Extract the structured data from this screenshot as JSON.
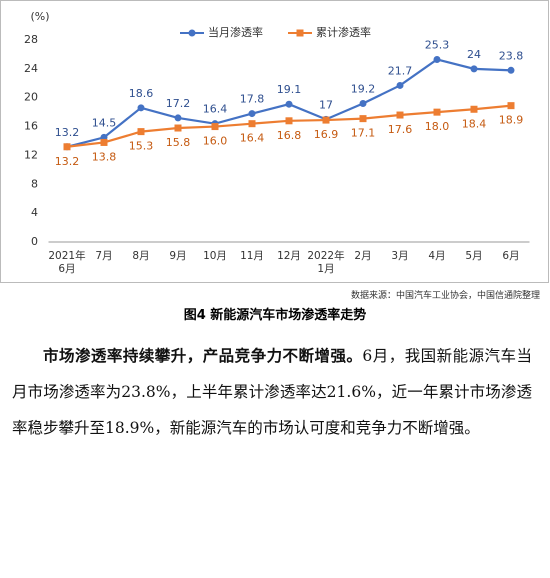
{
  "chart_data": {
    "type": "line",
    "unit_label": "(%)",
    "categories": [
      "2021年\n6月",
      "7月",
      "8月",
      "9月",
      "10月",
      "11月",
      "12月",
      "2022年\n1月",
      "2月",
      "3月",
      "4月",
      "5月",
      "6月"
    ],
    "series": [
      {
        "name": "当月渗透率",
        "color": "#4472c4",
        "values": [
          13.2,
          14.5,
          18.6,
          17.2,
          16.4,
          17.8,
          19.1,
          17,
          19.2,
          21.7,
          25.3,
          24,
          23.8
        ]
      },
      {
        "name": "累计渗透率",
        "color": "#ed7d31",
        "values": [
          13.2,
          13.8,
          15.3,
          15.8,
          16.0,
          16.4,
          16.8,
          16.9,
          17.1,
          17.6,
          18.0,
          18.4,
          18.9
        ],
        "value_labels": [
          "13.2",
          "13.8",
          "15.3",
          "15.8",
          "16.0",
          "16.4",
          "16.8",
          "16.9",
          "17.1",
          "17.6",
          "18.0",
          "18.4",
          "18.9"
        ]
      }
    ],
    "ylim": [
      0,
      28
    ],
    "yticks": [
      0,
      4,
      8,
      12,
      16,
      20,
      24,
      28
    ],
    "grid": false,
    "legend": "top"
  },
  "source": "数据来源：中国汽车工业协会，中国信通院整理",
  "caption": "图4 新能源汽车市场渗透率走势",
  "paragraph": {
    "lead": "市场渗透率持续攀升，产品竞争力不断增强。",
    "body": "6月，我国新能源汽车当月市场渗透率为23.8%，上半年累计渗透率达21.6%，近一年累计市场渗透率稳步攀升至18.9%，新能源汽车的市场认可度和竞争力不断增强。"
  }
}
